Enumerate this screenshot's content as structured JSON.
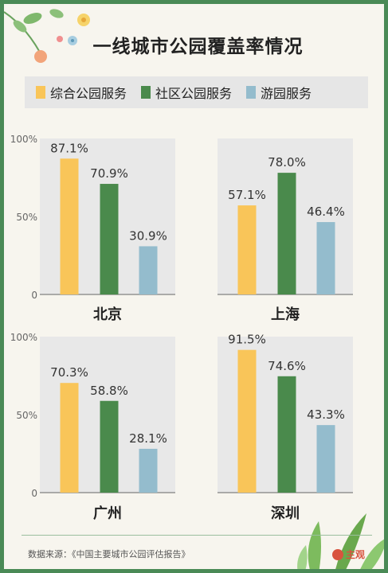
{
  "title": "一线城市公园覆盖率情况",
  "legend": [
    {
      "label": "综合公园服务",
      "color": "#f9c559"
    },
    {
      "label": "社区公园服务",
      "color": "#4a8a4c"
    },
    {
      "label": "游园服务",
      "color": "#94bccd"
    }
  ],
  "source": "数据来源：《中国主要城市公园评估报告》",
  "logo_text": "主观",
  "chart_data": [
    {
      "type": "bar",
      "title": "北京",
      "categories": [
        "综合公园服务",
        "社区公园服务",
        "游园服务"
      ],
      "values": [
        87.1,
        70.9,
        30.9
      ],
      "value_labels": [
        "87.1%",
        "70.9%",
        "30.9%"
      ],
      "yticks": [
        "0",
        "50%",
        "100%"
      ],
      "ylim": [
        0,
        100
      ]
    },
    {
      "type": "bar",
      "title": "上海",
      "categories": [
        "综合公园服务",
        "社区公园服务",
        "游园服务"
      ],
      "values": [
        57.1,
        78.0,
        46.4
      ],
      "value_labels": [
        "57.1%",
        "78.0%",
        "46.4%"
      ],
      "yticks": [
        "",
        "",
        ""
      ],
      "ylim": [
        0,
        100
      ]
    },
    {
      "type": "bar",
      "title": "广州",
      "categories": [
        "综合公园服务",
        "社区公园服务",
        "游园服务"
      ],
      "values": [
        70.3,
        58.8,
        28.1
      ],
      "value_labels": [
        "70.3%",
        "58.8%",
        "28.1%"
      ],
      "yticks": [
        "0",
        "50%",
        "100%"
      ],
      "ylim": [
        0,
        100
      ]
    },
    {
      "type": "bar",
      "title": "深圳",
      "categories": [
        "综合公园服务",
        "社区公园服务",
        "游园服务"
      ],
      "values": [
        91.5,
        74.6,
        43.3
      ],
      "value_labels": [
        "91.5%",
        "74.6%",
        "43.3%"
      ],
      "yticks": [
        "",
        "",
        ""
      ],
      "ylim": [
        0,
        100
      ]
    }
  ]
}
